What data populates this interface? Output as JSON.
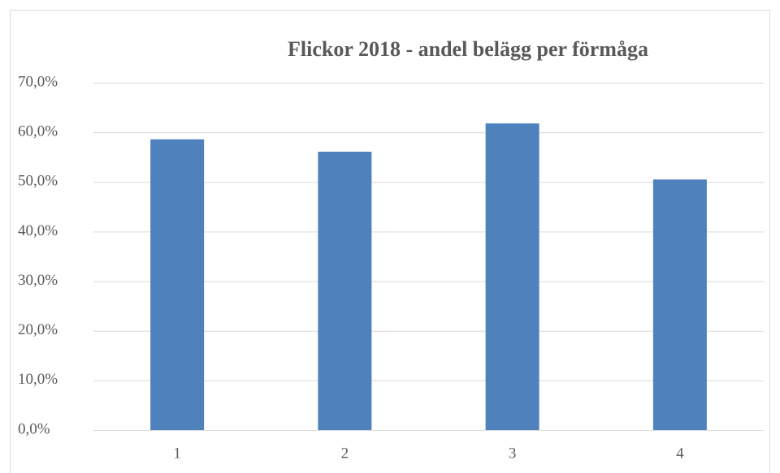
{
  "chart_data": {
    "type": "bar",
    "title": "Flickor 2018 - andel belägg per förmåga",
    "categories": [
      "1",
      "2",
      "3",
      "4"
    ],
    "values": [
      58.6,
      56.1,
      61.8,
      50.5
    ],
    "color": "#4f81bd",
    "ylim": [
      0,
      70
    ],
    "yticks": [
      {
        "value": 0,
        "label": "0,0%"
      },
      {
        "value": 10,
        "label": "10,0%"
      },
      {
        "value": 20,
        "label": "20,0%"
      },
      {
        "value": 30,
        "label": "30,0%"
      },
      {
        "value": 40,
        "label": "40,0%"
      },
      {
        "value": 50,
        "label": "50,0%"
      },
      {
        "value": 60,
        "label": "60,0%"
      },
      {
        "value": 70,
        "label": "70,0%"
      }
    ],
    "grid": true
  }
}
